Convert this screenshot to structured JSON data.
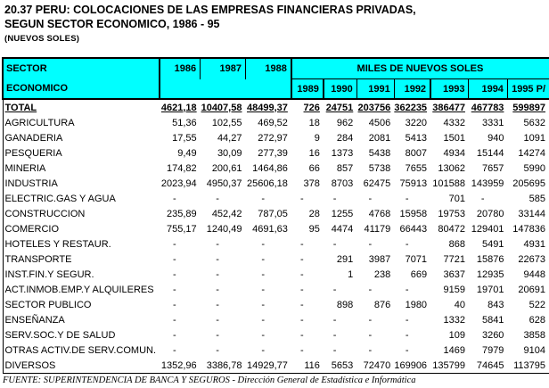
{
  "title": {
    "line1": "20.37  PERU: COLOCACIONES DE LAS EMPRESAS FINANCIERAS PRIVADAS,",
    "line2": "SEGUN SECTOR ECONOMICO, 1986 - 95",
    "unit_note": "(NUEVOS SOLES)"
  },
  "table": {
    "header": {
      "col1_line1": "SECTOR",
      "col1_line2": "ECONOMICO",
      "group_label": "MILES DE NUEVOS SOLES",
      "years_row1": [
        "1986",
        "1987",
        "1988"
      ],
      "years_row2": [
        "1989",
        "1990",
        "1991",
        "1992",
        "1993",
        "1994",
        "1995 P/"
      ]
    },
    "rows": [
      {
        "label": "TOTAL",
        "bold": true,
        "values": [
          "4621,18",
          "10407,58",
          "48499,37",
          "726",
          "24751",
          "203756",
          "362235",
          "386477",
          "467783",
          "599897"
        ]
      },
      {
        "label": "AGRICULTURA",
        "bold": false,
        "values": [
          "51,36",
          "102,55",
          "469,52",
          "18",
          "962",
          "4506",
          "3220",
          "4332",
          "3331",
          "5632"
        ]
      },
      {
        "label": "GANADERIA",
        "bold": false,
        "values": [
          "17,55",
          "44,27",
          "272,97",
          "9",
          "284",
          "2081",
          "5413",
          "1501",
          "940",
          "1091"
        ]
      },
      {
        "label": "PESQUERIA",
        "bold": false,
        "values": [
          "9,49",
          "30,09",
          "277,39",
          "16",
          "1373",
          "5438",
          "8007",
          "4934",
          "15144",
          "14274"
        ]
      },
      {
        "label": "MINERIA",
        "bold": false,
        "values": [
          "174,82",
          "200,61",
          "1464,86",
          "66",
          "857",
          "5738",
          "7655",
          "13062",
          "7657",
          "5990"
        ]
      },
      {
        "label": "INDUSTRIA",
        "bold": false,
        "values": [
          "2023,94",
          "4950,37",
          "25606,18",
          "378",
          "8703",
          "62475",
          "75913",
          "101588",
          "143959",
          "205695"
        ]
      },
      {
        "label": "ELECTRIC.GAS Y AGUA",
        "bold": false,
        "values": [
          "-",
          "-",
          "-",
          "-",
          "-",
          "-",
          "-",
          "701",
          "-",
          "585"
        ]
      },
      {
        "label": "CONSTRUCCION",
        "bold": false,
        "values": [
          "235,89",
          "452,42",
          "787,05",
          "28",
          "1255",
          "4768",
          "15958",
          "19753",
          "20780",
          "33144"
        ]
      },
      {
        "label": "COMERCIO",
        "bold": false,
        "values": [
          "755,17",
          "1240,49",
          "4691,63",
          "95",
          "4474",
          "41179",
          "66443",
          "80472",
          "129401",
          "147836"
        ]
      },
      {
        "label": "HOTELES Y RESTAUR.",
        "bold": false,
        "values": [
          "-",
          "-",
          "-",
          "-",
          "-",
          "-",
          "-",
          "868",
          "5491",
          "4931"
        ]
      },
      {
        "label": "TRANSPORTE",
        "bold": false,
        "values": [
          "-",
          "-",
          "-",
          "-",
          "291",
          "3987",
          "7071",
          "7721",
          "15876",
          "22673"
        ]
      },
      {
        "label": "INST.FIN.Y SEGUR.",
        "bold": false,
        "values": [
          "-",
          "-",
          "-",
          "-",
          "1",
          "238",
          "669",
          "3637",
          "12935",
          "9448"
        ]
      },
      {
        "label": "ACT.INMOB.EMP.Y ALQUILERES",
        "bold": false,
        "values": [
          "-",
          "-",
          "-",
          "-",
          "-",
          "-",
          "-",
          "9159",
          "19701",
          "20691"
        ]
      },
      {
        "label": "SECTOR PUBLICO",
        "bold": false,
        "values": [
          "-",
          "-",
          "-",
          "-",
          "898",
          "876",
          "1980",
          "40",
          "843",
          "522"
        ]
      },
      {
        "label": "ENSEÑANZA",
        "bold": false,
        "values": [
          "-",
          "-",
          "-",
          "-",
          "-",
          "-",
          "-",
          "1332",
          "5841",
          "628"
        ]
      },
      {
        "label": "SERV.SOC.Y DE SALUD",
        "bold": false,
        "values": [
          "-",
          "-",
          "-",
          "-",
          "-",
          "-",
          "-",
          "109",
          "3260",
          "3858"
        ]
      },
      {
        "label": "OTRAS ACTIV.DE SERV.COMUN.",
        "bold": false,
        "values": [
          "-",
          "-",
          "-",
          "-",
          "-",
          "-",
          "-",
          "1469",
          "7979",
          "9104"
        ]
      },
      {
        "label": "DIVERSOS",
        "bold": false,
        "values": [
          "1352,96",
          "3386,78",
          "14929,77",
          "116",
          "5653",
          "72470",
          "169906",
          "135799",
          "74645",
          "113795"
        ]
      }
    ]
  },
  "footer": {
    "source": "FUENTE:  SUPERINTENDENCIA DE BANCA Y SEGUROS - Dirección General de Estadística e Informática"
  },
  "colors": {
    "header_bg": "#00FFFF",
    "border": "#000000",
    "text": "#000000"
  }
}
